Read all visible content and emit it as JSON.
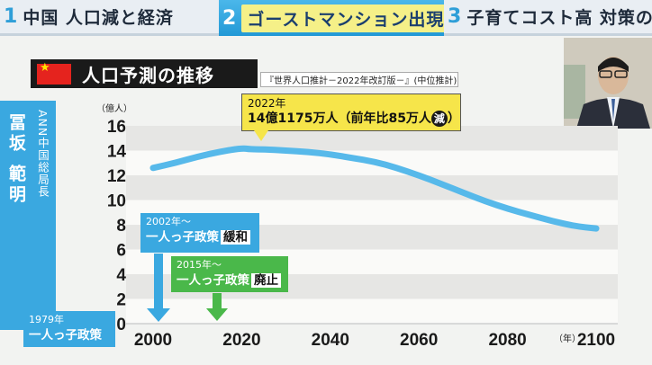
{
  "top_tabs": [
    {
      "number": "1",
      "label": "中国 人口減と経済"
    },
    {
      "number": "2",
      "label": "ゴーストマンション出現"
    },
    {
      "number": "3",
      "label": "子育てコスト高 対策の本気度"
    }
  ],
  "speaker": {
    "name": "冨坂 範明",
    "role": "ANN中国総局長"
  },
  "chart_title": "人口予測の推移",
  "source_note": "『世界人口推計－2022年改訂版－』(中位推計)",
  "peak_callout": {
    "year": "2022年",
    "value_text": "14億1175万人（前年比85万人",
    "badge": "減",
    "close": "）"
  },
  "policies": [
    {
      "year": "2002年～",
      "text": "一人っ子政策",
      "tag": "緩和"
    },
    {
      "year": "2015年～",
      "text": "一人っ子政策",
      "tag": "廃止"
    },
    {
      "year": "1979年",
      "text": "一人っ子政策",
      "tag": ""
    }
  ],
  "colors": {
    "accent_blue": "#3aa8e0",
    "line_blue": "#57b9ea",
    "callout_yellow": "#f6e54a",
    "policy_green": "#4ab84a",
    "flag_red": "#e5231e"
  },
  "chart_data": {
    "type": "line",
    "title": "人口予測の推移",
    "ylabel": "（億人）",
    "xlabel": "（年）",
    "ylim": [
      0,
      16
    ],
    "xlim": [
      2000,
      2100
    ],
    "x_ticks": [
      2000,
      2020,
      2040,
      2060,
      2080,
      2100
    ],
    "y_ticks": [
      0,
      2,
      4,
      6,
      8,
      10,
      12,
      14,
      16
    ],
    "grid": "horizontal bands",
    "series": [
      {
        "x": [
          2000,
          2005,
          2010,
          2015,
          2020,
          2022,
          2025,
          2030,
          2035,
          2040,
          2045,
          2050,
          2055,
          2060,
          2065,
          2070,
          2075,
          2080,
          2085,
          2090,
          2095,
          2100
        ],
        "values": [
          12.6,
          13.0,
          13.5,
          13.9,
          14.2,
          14.1,
          14.1,
          14.0,
          13.9,
          13.7,
          13.4,
          13.1,
          12.6,
          12.0,
          11.3,
          10.6,
          9.9,
          9.3,
          8.8,
          8.3,
          7.9,
          7.7
        ]
      }
    ]
  }
}
